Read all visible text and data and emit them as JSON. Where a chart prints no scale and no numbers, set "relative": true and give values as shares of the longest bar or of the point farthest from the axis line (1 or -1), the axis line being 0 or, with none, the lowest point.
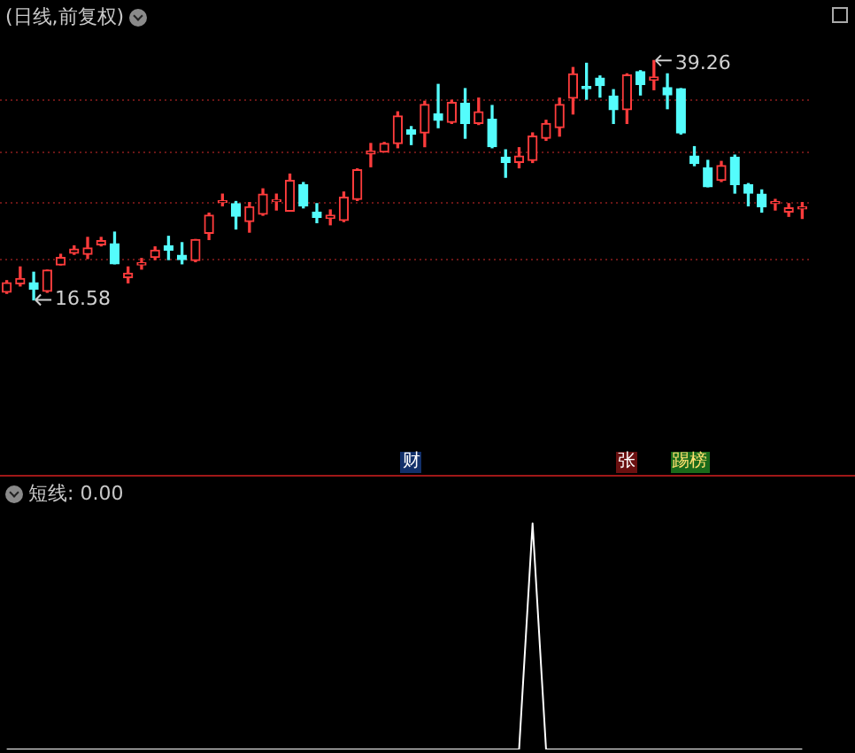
{
  "chart_data": [
    {
      "type": "candlestick",
      "title": "(日线,前复权)",
      "categories": [
        null,
        null,
        null,
        null,
        null,
        null,
        null,
        null,
        null,
        null,
        null,
        null,
        null,
        null,
        null,
        null,
        null,
        null,
        null,
        null,
        null,
        null,
        null,
        null,
        null,
        null,
        null,
        null,
        null,
        null,
        null,
        null,
        null,
        null,
        null,
        null,
        null,
        null,
        null,
        null,
        null,
        null,
        null,
        null,
        null,
        null,
        null,
        null,
        null,
        null,
        null,
        null,
        null,
        null,
        null,
        null,
        null,
        null,
        null,
        null
      ],
      "ohlc": [
        [
          17.3,
          18.4,
          17.2,
          18.2
        ],
        [
          18.1,
          19.7,
          17.9,
          18.6
        ],
        [
          18.2,
          19.2,
          16.58,
          17.6
        ],
        [
          17.4,
          19.4,
          17.3,
          19.4
        ],
        [
          19.9,
          20.9,
          19.9,
          20.6
        ],
        [
          21.0,
          21.7,
          20.9,
          21.4
        ],
        [
          20.9,
          22.5,
          20.5,
          21.5
        ],
        [
          21.8,
          22.5,
          21.7,
          22.2
        ],
        [
          21.9,
          23.0,
          20.0,
          20.0
        ],
        [
          18.7,
          19.7,
          18.2,
          19.1
        ],
        [
          19.9,
          20.5,
          19.5,
          20.1
        ],
        [
          20.6,
          21.6,
          20.4,
          21.3
        ],
        [
          21.7,
          22.6,
          20.4,
          21.3
        ],
        [
          20.8,
          22.0,
          20.0,
          20.4
        ],
        [
          20.3,
          22.3,
          20.2,
          22.3
        ],
        [
          22.9,
          24.8,
          22.3,
          24.6
        ],
        [
          25.8,
          26.6,
          25.5,
          25.9
        ],
        [
          25.7,
          25.9,
          23.3,
          24.5
        ],
        [
          24.0,
          25.8,
          23.0,
          25.4
        ],
        [
          24.7,
          27.1,
          24.6,
          26.6
        ],
        [
          25.9,
          26.6,
          25.1,
          26.0
        ],
        [
          25.0,
          28.5,
          25.0,
          27.9
        ],
        [
          27.5,
          27.7,
          25.3,
          25.5
        ],
        [
          24.9,
          25.7,
          23.9,
          24.4
        ],
        [
          24.3,
          25.1,
          23.7,
          24.6
        ],
        [
          24.1,
          26.8,
          24.0,
          26.3
        ],
        [
          26.1,
          29.0,
          26.0,
          28.9
        ],
        [
          30.4,
          31.4,
          29.2,
          30.7
        ],
        [
          30.6,
          31.5,
          30.6,
          31.4
        ],
        [
          31.4,
          34.4,
          31.0,
          34.0
        ],
        [
          32.7,
          33.0,
          31.3,
          32.3
        ],
        [
          32.4,
          35.4,
          31.1,
          35.1
        ],
        [
          34.2,
          37.0,
          32.9,
          33.6
        ],
        [
          33.4,
          35.5,
          33.3,
          35.3
        ],
        [
          35.2,
          36.6,
          31.9,
          33.3
        ],
        [
          33.3,
          35.7,
          33.2,
          34.4
        ],
        [
          33.7,
          35.0,
          31.0,
          31.1
        ],
        [
          30.1,
          30.8,
          28.2,
          29.6
        ],
        [
          29.6,
          31.0,
          29.1,
          30.2
        ],
        [
          29.8,
          32.4,
          29.6,
          32.1
        ],
        [
          31.9,
          33.6,
          31.7,
          33.3
        ],
        [
          32.9,
          35.7,
          32.1,
          35.1
        ],
        [
          35.7,
          38.6,
          34.2,
          38.0
        ],
        [
          36.8,
          39.0,
          35.6,
          36.6
        ],
        [
          37.6,
          37.8,
          35.8,
          36.9
        ],
        [
          35.9,
          36.5,
          33.3,
          34.6
        ],
        [
          34.6,
          38.0,
          33.3,
          37.9
        ],
        [
          38.2,
          38.3,
          36.0,
          37.0
        ],
        [
          37.4,
          39.26,
          36.5,
          37.7
        ],
        [
          36.7,
          38.0,
          34.7,
          36.0
        ],
        [
          36.6,
          36.6,
          32.3,
          32.4
        ],
        [
          30.2,
          31.1,
          29.3,
          29.5
        ],
        [
          29.1,
          29.8,
          27.3,
          27.3
        ],
        [
          27.9,
          29.7,
          27.8,
          29.3
        ],
        [
          30.1,
          30.3,
          26.7,
          27.5
        ],
        [
          27.5,
          27.6,
          25.5,
          26.7
        ],
        [
          26.6,
          27.0,
          24.9,
          25.4
        ],
        [
          25.7,
          26.1,
          25.1,
          25.9
        ],
        [
          24.9,
          25.7,
          24.5,
          25.3
        ],
        [
          25.2,
          25.8,
          24.3,
          25.4
        ]
      ],
      "yticks": [
        {
          "value": 20.4,
          "label": null
        },
        {
          "value": 25.8,
          "label": null
        },
        {
          "value": 30.6,
          "label": null
        },
        {
          "value": 35.5,
          "label": null
        }
      ],
      "grid": "y",
      "annotations": [
        "39.26",
        "16.58",
        "财",
        "张",
        "踢榜"
      ]
    },
    {
      "type": "line",
      "relative": true,
      "categories": [
        null,
        null,
        null,
        null,
        null,
        null,
        null,
        null,
        null,
        null,
        null,
        null,
        null,
        null,
        null,
        null,
        null,
        null,
        null,
        null,
        null,
        null,
        null,
        null,
        null,
        null,
        null,
        null,
        null,
        null,
        null,
        null,
        null,
        null,
        null,
        null,
        null,
        null,
        null,
        null,
        null,
        null,
        null,
        null,
        null,
        null,
        null,
        null,
        null,
        null,
        null,
        null,
        null,
        null,
        null,
        null,
        null,
        null,
        null,
        null
      ],
      "series": [
        {
          "color": "#ffffff",
          "values": [
            0,
            0,
            0,
            0,
            0,
            0,
            0,
            0,
            0,
            0,
            0,
            0,
            0,
            0,
            0,
            0,
            0,
            0,
            0,
            0,
            0,
            0,
            0,
            0,
            0,
            0,
            0,
            0,
            0,
            0,
            0,
            0,
            0,
            0,
            0,
            0,
            0,
            0,
            0,
            1,
            0,
            0,
            0,
            0,
            0,
            0,
            0,
            0,
            0,
            0,
            0,
            0,
            0,
            0,
            0,
            0,
            0,
            0,
            0,
            0
          ]
        }
      ],
      "annotations": [
        "短线: 0.00"
      ]
    }
  ]
}
